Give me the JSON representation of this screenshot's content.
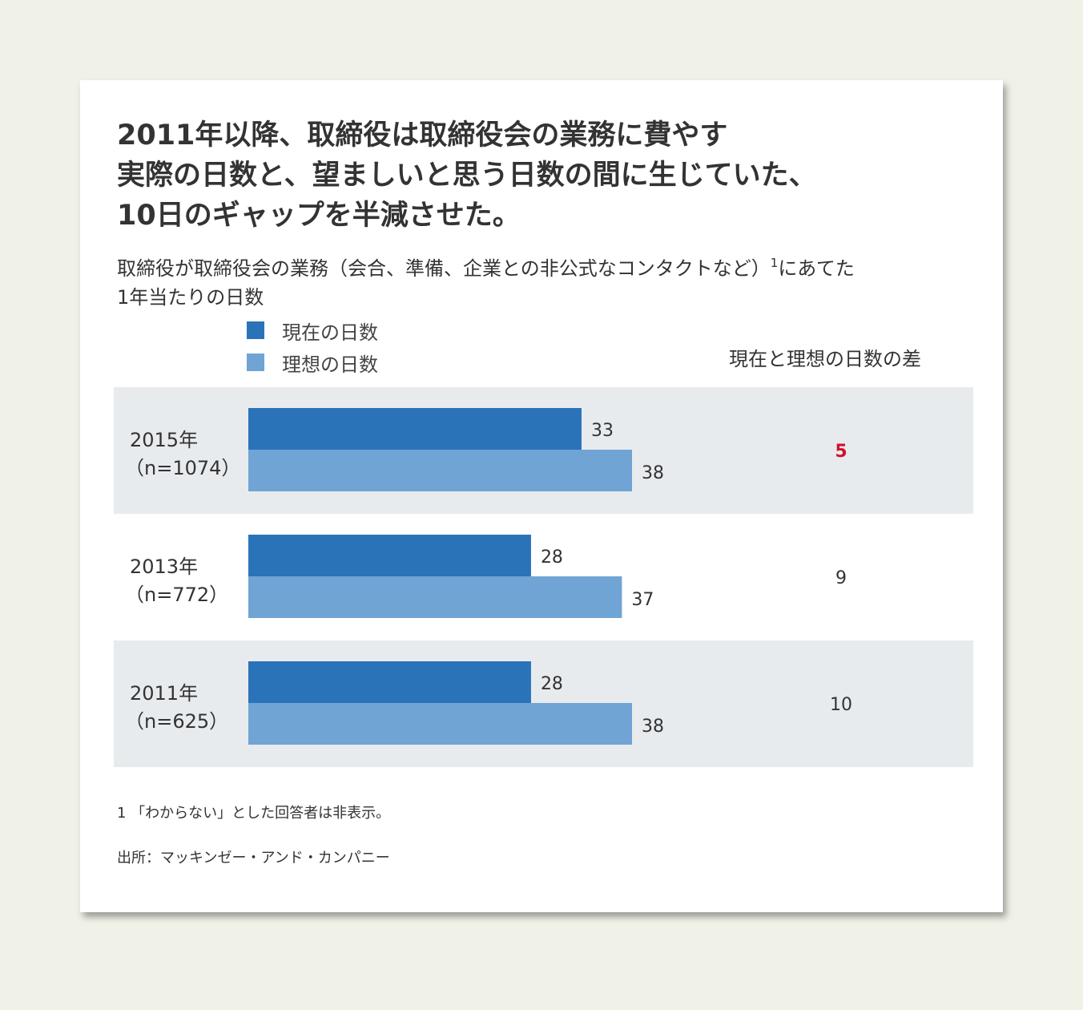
{
  "title_lines": [
    "2011年以降、取締役は取締役会の業務に費やす",
    "実際の日数と、望ましいと思う日数の間に生じていた、",
    "10日のギャップを半減させた。"
  ],
  "subtitle": {
    "line1": "取締役が取締役会の業務（会合、準備、企業との非公式なコンタクトなど）",
    "sup": "1",
    "line1_end": "にあてた",
    "line2": "1年当たりの日数"
  },
  "legend": [
    {
      "label": "現在の日数",
      "color": "#2b73b8"
    },
    {
      "label": "理想の日数",
      "color": "#70a4d4"
    }
  ],
  "diff_header": "現在と理想の日数の差",
  "highlight_color": "#d0122a",
  "chart_data": {
    "type": "bar",
    "orientation": "horizontal",
    "categories": [
      {
        "year": "2015年",
        "n": "（n=1074）"
      },
      {
        "year": "2013年",
        "n": "（n=772）"
      },
      {
        "year": "2011年",
        "n": "（n=625）"
      }
    ],
    "series": [
      {
        "name": "現在の日数",
        "values": [
          33,
          28,
          28
        ],
        "color": "#2b73b8"
      },
      {
        "name": "理想の日数",
        "values": [
          38,
          37,
          38
        ],
        "color": "#70a4d4"
      }
    ],
    "differences": [
      "5",
      "9",
      "10"
    ],
    "highlight_index": 0,
    "xlim": [
      0,
      38
    ],
    "row_backgrounds": [
      "#e8ebee",
      "#ffffff",
      "#e8ebee"
    ]
  },
  "footnote": "1 「わからない」とした回答者は非表示。",
  "source": "出所：マッキンゼー・アンド・カンパニー"
}
